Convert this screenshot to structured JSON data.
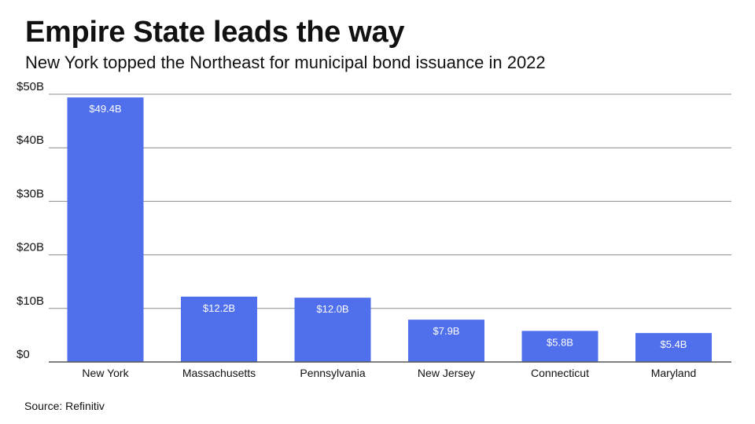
{
  "title": "Empire State leads the way",
  "subtitle": "New York topped the Northeast for municipal bond issuance in 2022",
  "source": "Source: Refinitiv",
  "colors": {
    "bar": "#4f6fec",
    "grid": "#8c8c8c",
    "axis": "#555555",
    "label_inside": "#ffffff",
    "text": "#111111"
  },
  "chart_data": {
    "type": "bar",
    "title": "Empire State leads the way",
    "subtitle": "New York topped the Northeast for municipal bond issuance in 2022",
    "xlabel": "",
    "ylabel": "",
    "categories": [
      "New York",
      "Massachusetts",
      "Pennsylvania",
      "New Jersey",
      "Connecticut",
      "Maryland"
    ],
    "values": [
      49.4,
      12.2,
      12.0,
      7.9,
      5.8,
      5.4
    ],
    "value_labels": [
      "$49.4B",
      "$12.2B",
      "$12.0B",
      "$7.9B",
      "$5.8B",
      "$5.4B"
    ],
    "ylim": [
      0,
      50
    ],
    "yticks": [
      0,
      10,
      20,
      30,
      40,
      50
    ],
    "ytick_labels": [
      "$0",
      "$10B",
      "$20B",
      "$30B",
      "$40B",
      "$50B"
    ],
    "grid": true,
    "legend": "none"
  }
}
